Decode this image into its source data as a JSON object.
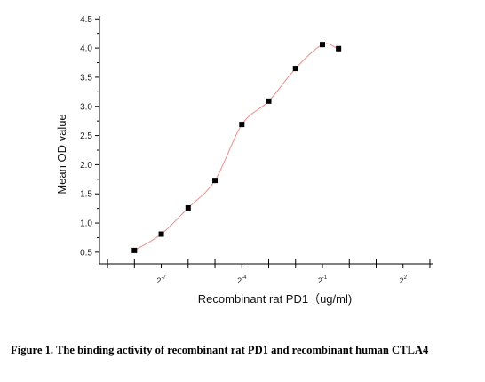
{
  "chart_data": {
    "type": "scatter",
    "xlabel": "Recombinant rat PD1（ug/ml)",
    "ylabel": "Mean OD value",
    "ylim": [
      0.3,
      4.55
    ],
    "y_ticks": [
      "0.5",
      "1.0",
      "1.5",
      "2.0",
      "2.5",
      "3.0",
      "3.5",
      "4.0",
      "4.5"
    ],
    "x_scale": "log2",
    "xlim_log2": [
      -9.3,
      3.1
    ],
    "x_tick_labels": [
      {
        "base": "2",
        "exp": "-7",
        "log2": -7
      },
      {
        "base": "2",
        "exp": "-4",
        "log2": -4
      },
      {
        "base": "2",
        "exp": "-1",
        "log2": -1
      },
      {
        "base": "2",
        "exp": "2",
        "log2": 2
      }
    ],
    "series": [
      {
        "points": [
          {
            "log2_x": -8.0,
            "y": 0.53
          },
          {
            "log2_x": -7.0,
            "y": 0.81
          },
          {
            "log2_x": -6.0,
            "y": 1.26
          },
          {
            "log2_x": -5.0,
            "y": 1.73
          },
          {
            "log2_x": -4.0,
            "y": 2.69
          },
          {
            "log2_x": -3.0,
            "y": 3.09
          },
          {
            "log2_x": -2.0,
            "y": 3.65
          },
          {
            "log2_x": -1.0,
            "y": 4.06
          },
          {
            "log2_x": -0.4,
            "y": 3.99
          }
        ],
        "fit_color": "#f28c8c",
        "marker_color": "#000000"
      }
    ],
    "grid": false
  },
  "caption": "Figure 1. The binding activity of recombinant rat PD1 and recombinant human CTLA4"
}
